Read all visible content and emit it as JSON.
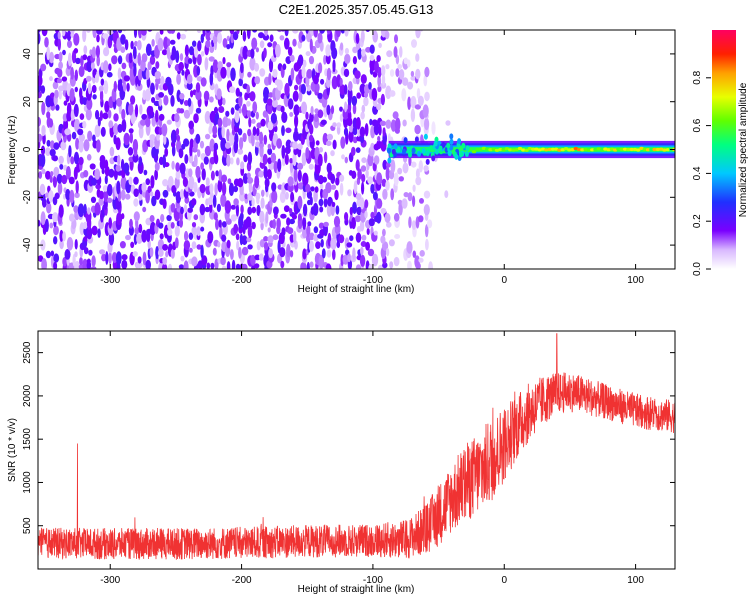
{
  "title": "C2E1.2025.357.05.45.G13",
  "colors": {
    "background": "#ffffff",
    "snr_line": "#f03232",
    "axis": "#000000",
    "spectrogram_low": "#7a00ff",
    "spectrogram_high": "#ff0040"
  },
  "chart_data": [
    {
      "type": "heatmap",
      "name": "spectrogram",
      "xlabel": "Height of straight line (km)",
      "ylabel": "Frequency (Hz)",
      "xlim": [
        -355,
        130
      ],
      "ylim": [
        -50,
        50
      ],
      "xticks": [
        -300,
        -200,
        -100,
        0,
        100
      ],
      "xtick_labels": [
        "-300",
        "-200",
        "-100",
        "0",
        "100"
      ],
      "yticks": [
        -40,
        -20,
        0,
        20,
        40
      ],
      "ytick_labels": [
        "-40",
        "-20",
        "0",
        "20",
        "40"
      ],
      "noise_region_x": [
        -355,
        -90
      ],
      "transition_x": [
        -90,
        -60
      ],
      "signal_line": {
        "x_start": -88,
        "x_end": 130,
        "frequency_hz": 0,
        "peak_amplitude": 0.9
      },
      "colorbar": {
        "label": "Normalized spectral amplitude",
        "range": [
          0,
          1
        ],
        "ticks": [
          0.0,
          0.2,
          0.4,
          0.6,
          0.8
        ],
        "tick_labels": [
          "0.0",
          "0.2",
          "0.4",
          "0.6",
          "0.8"
        ],
        "colormap": "rainbow (white → purple → blue → cyan → green → yellow → red → magenta)"
      },
      "grid": false
    },
    {
      "type": "line",
      "name": "snr",
      "xlabel": "Height of straight line (km)",
      "ylabel": "SNR (10 * v/v)",
      "xlim": [
        -355,
        130
      ],
      "ylim": [
        0,
        2750
      ],
      "xticks": [
        -300,
        -200,
        -100,
        0,
        100
      ],
      "xtick_labels": [
        "-300",
        "-200",
        "-100",
        "0",
        "100"
      ],
      "yticks": [
        500,
        1000,
        1500,
        2000,
        2500
      ],
      "ytick_labels": [
        "500",
        "1000",
        "1500",
        "2000",
        "2500"
      ],
      "trend": {
        "x": [
          -355,
          -300,
          -250,
          -200,
          -150,
          -100,
          -75,
          -60,
          -50,
          -40,
          -30,
          -20,
          -10,
          0,
          10,
          20,
          30,
          40,
          50,
          60,
          80,
          100,
          115,
          130
        ],
        "y": [
          300,
          290,
          290,
          300,
          320,
          330,
          340,
          450,
          620,
          820,
          980,
          1100,
          1250,
          1450,
          1650,
          1830,
          1950,
          2030,
          2050,
          2010,
          1920,
          1830,
          1790,
          1760
        ]
      },
      "spread": {
        "x": [
          -355,
          -100,
          -70,
          -50,
          -30,
          -10,
          10,
          40,
          80,
          130
        ],
        "y": [
          150,
          160,
          200,
          300,
          380,
          420,
          320,
          200,
          170,
          160
        ]
      },
      "notable_peaks": [
        {
          "x": -325,
          "y": 1450
        },
        {
          "x": 40,
          "y": 2720
        }
      ],
      "grid": false
    }
  ]
}
